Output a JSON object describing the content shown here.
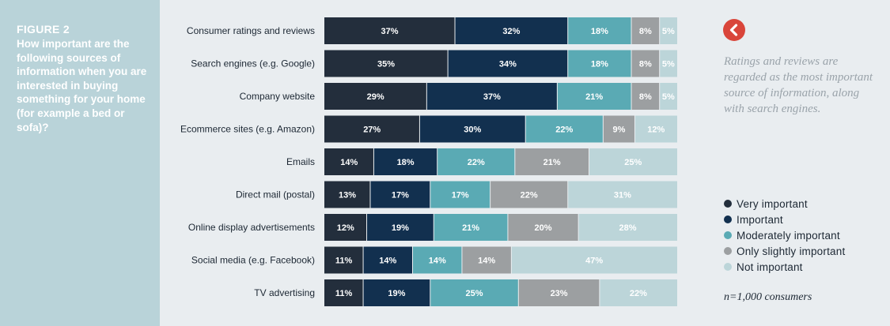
{
  "figure": {
    "label": "FIGURE 2",
    "question": "How important are the following sources of information when you are interested in buying something for your home (for example a bed or sofa)?"
  },
  "annotation": "Ratings and reviews are regarded as the most important source of information, along with search engines.",
  "sample_note": "n=1,000 consumers",
  "colors": {
    "very_important": "#232e3c",
    "important": "#12304f",
    "moderately_important": "#5aaab4",
    "only_slightly_important": "#9c9fa1",
    "not_important": "#bcd5d9",
    "panel": "#b9d3d9",
    "accent": "#d9453a"
  },
  "legend": [
    {
      "label": "Very important",
      "color": "#232e3c"
    },
    {
      "label": "Important",
      "color": "#12304f"
    },
    {
      "label": "Moderately important",
      "color": "#5aaab4"
    },
    {
      "label": "Only slightly important",
      "color": "#9c9fa1"
    },
    {
      "label": "Not important",
      "color": "#bcd5d9"
    }
  ],
  "chart_data": {
    "type": "bar",
    "orientation": "horizontal",
    "stacked": "100%",
    "title": "How important are the following sources of information when you are interested in buying something for your home (for example a bed or sofa)?",
    "categories": [
      "Consumer ratings and reviews",
      "Search engines (e.g. Google)",
      "Company website",
      "Ecommerce sites (e.g. Amazon)",
      "Emails",
      "Direct mail (postal)",
      "Online display advertisements",
      "Social media (e.g. Facebook)",
      "TV advertising"
    ],
    "series": [
      {
        "name": "Very important",
        "color": "#232e3c",
        "label_color": "#ffffff",
        "values": [
          37,
          35,
          29,
          27,
          14,
          13,
          12,
          11,
          11
        ]
      },
      {
        "name": "Important",
        "color": "#12304f",
        "label_color": "#ffffff",
        "values": [
          32,
          34,
          37,
          30,
          18,
          17,
          19,
          14,
          19
        ]
      },
      {
        "name": "Moderately important",
        "color": "#5aaab4",
        "label_color": "#ffffff",
        "values": [
          18,
          18,
          21,
          22,
          22,
          17,
          21,
          14,
          25
        ]
      },
      {
        "name": "Only slightly important",
        "color": "#9c9fa1",
        "label_color": "#ffffff",
        "values": [
          8,
          8,
          8,
          9,
          21,
          22,
          20,
          14,
          23
        ]
      },
      {
        "name": "Not important",
        "color": "#bcd5d9",
        "label_color": "#ffffff",
        "values": [
          5,
          5,
          5,
          12,
          25,
          31,
          28,
          47,
          22
        ]
      }
    ],
    "value_suffix": "%",
    "legend_position": "right",
    "grid": false
  }
}
